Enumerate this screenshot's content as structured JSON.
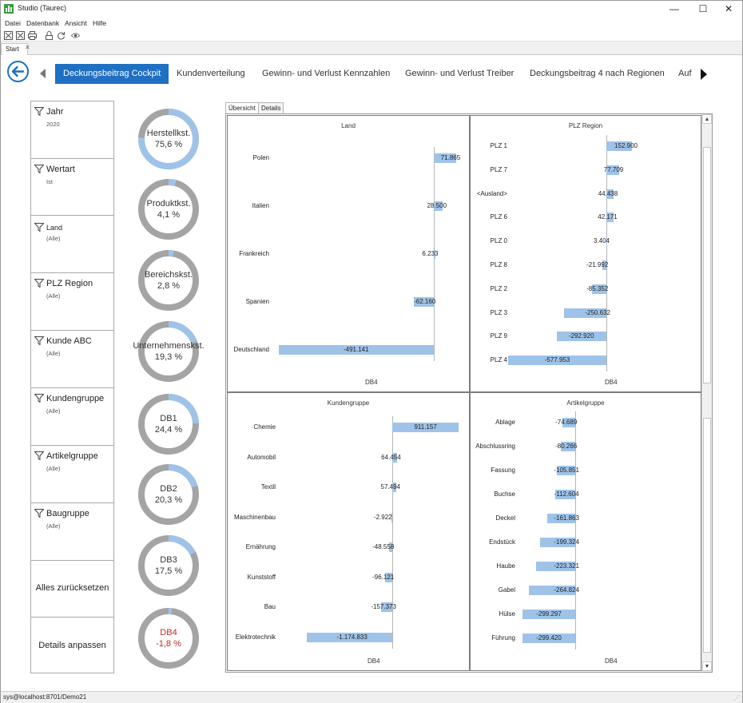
{
  "window": {
    "title": "Studio (Taurec)",
    "minimize": "—",
    "maximize": "☐",
    "close": "✕"
  },
  "menu": [
    "Datei",
    "Datenbank",
    "Ansicht",
    "Hilfe"
  ],
  "toolbar_icons": [
    "close-box-icon",
    "close-box-icon",
    "print-icon",
    "lock-icon",
    "refresh-icon",
    "eye-icon"
  ],
  "doc_tab": "Start",
  "nav_tabs": [
    "Deckungsbeitrag Cockpit",
    "Kundenverteilung",
    "Gewinn- und Verlust Kennzahlen",
    "Gewinn- und Verlust Treiber",
    "Deckungsbeitrag 4 nach Regionen",
    "Auf"
  ],
  "filters": [
    {
      "label": "Jahr",
      "value": "2020"
    },
    {
      "label": "Wertart",
      "value": "Ist"
    },
    {
      "label": "Land",
      "value": "(Alle)"
    },
    {
      "label": "PLZ Region",
      "value": "(Alle)"
    },
    {
      "label": "Kunde ABC",
      "value": "(Alle)"
    },
    {
      "label": "Kundengruppe",
      "value": "(Alle)"
    },
    {
      "label": "Artikelgruppe",
      "value": "(Alle)"
    },
    {
      "label": "Baugruppe",
      "value": "(Alle)"
    }
  ],
  "actions": {
    "reset": "Alles zurücksetzen",
    "customize": "Details anpassen"
  },
  "kpis": [
    {
      "name": "Herstellkst.",
      "value": "75,6 %",
      "pct": 75.6,
      "negative": false
    },
    {
      "name": "Produktkst.",
      "value": "4,1 %",
      "pct": 4.1,
      "negative": false
    },
    {
      "name": "Bereichskst.",
      "value": "2,8 %",
      "pct": 2.8,
      "negative": false
    },
    {
      "name": "Unternehmenskst.",
      "value": "19,3 %",
      "pct": 19.3,
      "negative": false
    },
    {
      "name": "DB1",
      "value": "24,4 %",
      "pct": 24.4,
      "negative": false
    },
    {
      "name": "DB2",
      "value": "20,3 %",
      "pct": 20.3,
      "negative": false
    },
    {
      "name": "DB3",
      "value": "17,5 %",
      "pct": 17.5,
      "negative": false
    },
    {
      "name": "DB4",
      "value": "-1,8 %",
      "pct": 1.8,
      "negative": true
    }
  ],
  "view_tabs": [
    "Übersicht",
    "Details"
  ],
  "colors": {
    "accent": "#1f6fc2",
    "bar": "#9fc3e8",
    "donut_track": "#a4a4a4",
    "donut_fill": "#9fc3e8",
    "negative": "#c0282d"
  },
  "chart_data": [
    {
      "type": "bar",
      "title": "Land",
      "xlabel": "DB4",
      "categories": [
        "Polen",
        "Italien",
        "Frankreich",
        "Spanien",
        "Deutschland"
      ],
      "values": [
        71865,
        28500,
        6233,
        -62160,
        -491141
      ],
      "labels": [
        "71.865",
        "28.500",
        "6.233",
        "-62.160",
        "-491.141"
      ]
    },
    {
      "type": "bar",
      "title": "PLZ Region",
      "xlabel": "DB4",
      "categories": [
        "PLZ 1",
        "PLZ 7",
        "<Ausland>",
        "PLZ 6",
        "PLZ 0",
        "PLZ 8",
        "PLZ 2",
        "PLZ 3",
        "PLZ 9",
        "PLZ 4"
      ],
      "values": [
        152900,
        77709,
        44438,
        42171,
        3404,
        -21992,
        -85352,
        -250632,
        -292920,
        -577953
      ],
      "labels": [
        "152.900",
        "77.709",
        "44.438",
        "42.171",
        "3.404",
        "-21.992",
        "-85.352",
        "-250.632",
        "-292.920",
        "-577.953"
      ]
    },
    {
      "type": "bar",
      "title": "Kundengruppe",
      "xlabel": "DB4",
      "categories": [
        "Chemie",
        "Automobil",
        "Textil",
        "Maschinenbau",
        "Ernährung",
        "Kunststoff",
        "Bau",
        "Elektrotechnik"
      ],
      "values": [
        911157,
        64454,
        57494,
        -2922,
        -48558,
        -96121,
        -157373,
        -1174833
      ],
      "labels": [
        "911.157",
        "64.454",
        "57.494",
        "-2.922",
        "-48.558",
        "-96.121",
        "-157.373",
        "-1.174.833"
      ]
    },
    {
      "type": "bar",
      "title": "Artikelgruppe",
      "xlabel": "DB4",
      "categories": [
        "Ablage",
        "Abschlussring",
        "Fassung",
        "Buchse",
        "Deckel",
        "Endstück",
        "Haube",
        "Gabel",
        "Hülse",
        "Führung"
      ],
      "values": [
        -74689,
        -80266,
        -105851,
        -112604,
        -161863,
        -199324,
        -223321,
        -264824,
        -299297,
        -299420
      ],
      "labels": [
        "-74.689",
        "-80.266",
        "-105.851",
        "-112.604",
        "-161.863",
        "-199.324",
        "-223.321",
        "-264.824",
        "-299.297",
        "-299.420"
      ]
    }
  ],
  "scroll": {
    "up": "▲",
    "down": "▼"
  },
  "status": "sys@localhost:8701/Demo21"
}
